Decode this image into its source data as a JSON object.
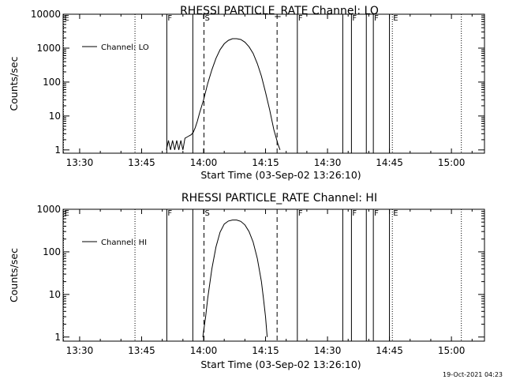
{
  "footer_timestamp": "19-Oct-2021 04:23",
  "chart_data": [
    {
      "type": "line",
      "title": "RHESSI PARTICLE_RATE Channel: LO",
      "xlabel": "Start Time (03-Sep-02 13:26:10)",
      "ylabel": "Counts/sec",
      "xlim": [
        "13:26",
        "15:08"
      ],
      "ylim": [
        0.8,
        10000
      ],
      "yscale": "log",
      "grid": false,
      "legend_placement": "top-left",
      "xticks": [
        "13:30",
        "13:45",
        "14:00",
        "14:15",
        "14:30",
        "14:45",
        "15:00"
      ],
      "yticks": [
        "1",
        "10",
        "100",
        "1000",
        "10000"
      ],
      "series": [
        {
          "name": "Channel: LO",
          "x": [
            "13:51.0",
            "13:51.5",
            "13:52.0",
            "13:52.5",
            "13:53.0",
            "13:53.5",
            "13:54.0",
            "13:54.5",
            "13:55.0",
            "13:55.5",
            "13:56.0",
            "13:56.5",
            "13:57.0",
            "13:57.5",
            "13:58.0",
            "13:58.5",
            "13:59.0",
            "14:00.0",
            "14:01.0",
            "14:02.0",
            "14:03.0",
            "14:04.0",
            "14:05.0",
            "14:06.0",
            "14:07.0",
            "14:08.0",
            "14:09.0",
            "14:10.0",
            "14:11.0",
            "14:12.0",
            "14:13.0",
            "14:14.0",
            "14:15.0",
            "14:16.0",
            "14:17.0",
            "14:18.0",
            "14:18.5"
          ],
          "values": [
            1,
            1.9,
            1,
            1.9,
            1,
            1.9,
            1,
            1.9,
            1,
            2.2,
            2.4,
            2.6,
            2.8,
            3.3,
            4.6,
            7,
            12,
            30,
            90,
            230,
            500,
            900,
            1350,
            1700,
            1900,
            1900,
            1800,
            1500,
            1100,
            700,
            350,
            150,
            50,
            15,
            4,
            1.5,
            1
          ]
        }
      ],
      "annotations": [
        {
          "label": "E",
          "x": "13:26.0",
          "style": "dotted"
        },
        {
          "label": "",
          "x": "13:43.3",
          "style": "dotted"
        },
        {
          "label": "F",
          "x": "13:51.0",
          "style": "solid"
        },
        {
          "label": "",
          "x": "13:57.3",
          "style": "solid"
        },
        {
          "label": "S",
          "x": "14:00.0",
          "style": "dashed"
        },
        {
          "label": "",
          "x": "14:17.7",
          "style": "dashed"
        },
        {
          "label": "F",
          "x": "14:22.6",
          "style": "solid"
        },
        {
          "label": "F",
          "x": "14:35.7",
          "style": "solid"
        },
        {
          "label": "",
          "x": "14:33.6",
          "style": "solid"
        },
        {
          "label": "",
          "x": "14:39.3",
          "style": "solid"
        },
        {
          "label": "F",
          "x": "14:41.0",
          "style": "solid"
        },
        {
          "label": "",
          "x": "14:44.9",
          "style": "solid"
        },
        {
          "label": "E",
          "x": "14:45.6",
          "style": "dotted"
        },
        {
          "label": "",
          "x": "15:02.3",
          "style": "dotted"
        }
      ]
    },
    {
      "type": "line",
      "title": "RHESSI PARTICLE_RATE Channel: HI",
      "xlabel": "Start Time (03-Sep-02 13:26:10)",
      "ylabel": "Counts/sec",
      "xlim": [
        "13:26",
        "15:08"
      ],
      "ylim": [
        0.8,
        1000
      ],
      "yscale": "log",
      "grid": false,
      "legend_placement": "top-left",
      "xticks": [
        "13:30",
        "13:45",
        "14:00",
        "14:15",
        "14:30",
        "14:45",
        "15:00"
      ],
      "yticks": [
        "1",
        "10",
        "100",
        "1000"
      ],
      "series": [
        {
          "name": "Channel: HI",
          "x": [
            "13:59.8",
            "14:00.5",
            "14:01.0",
            "14:02.0",
            "14:03.0",
            "14:04.0",
            "14:05.0",
            "14:06.0",
            "14:07.0",
            "14:08.0",
            "14:09.0",
            "14:10.0",
            "14:11.0",
            "14:12.0",
            "14:13.0",
            "14:14.0",
            "14:14.5",
            "14:15.0",
            "14:15.4"
          ],
          "values": [
            1,
            3,
            8,
            40,
            130,
            290,
            450,
            530,
            560,
            560,
            520,
            430,
            300,
            170,
            70,
            20,
            8,
            3,
            1
          ]
        }
      ],
      "annotations": [
        {
          "label": "E",
          "x": "13:26.0",
          "style": "dotted"
        },
        {
          "label": "",
          "x": "13:43.3",
          "style": "dotted"
        },
        {
          "label": "F",
          "x": "13:51.0",
          "style": "solid"
        },
        {
          "label": "",
          "x": "13:57.3",
          "style": "solid"
        },
        {
          "label": "S",
          "x": "14:00.0",
          "style": "dashed"
        },
        {
          "label": "",
          "x": "14:17.7",
          "style": "dashed"
        },
        {
          "label": "F",
          "x": "14:22.6",
          "style": "solid"
        },
        {
          "label": "F",
          "x": "14:35.7",
          "style": "solid"
        },
        {
          "label": "",
          "x": "14:33.6",
          "style": "solid"
        },
        {
          "label": "",
          "x": "14:39.3",
          "style": "solid"
        },
        {
          "label": "F",
          "x": "14:41.0",
          "style": "solid"
        },
        {
          "label": "",
          "x": "14:44.9",
          "style": "solid"
        },
        {
          "label": "E",
          "x": "14:45.6",
          "style": "dotted"
        },
        {
          "label": "",
          "x": "15:02.3",
          "style": "dotted"
        }
      ]
    }
  ]
}
